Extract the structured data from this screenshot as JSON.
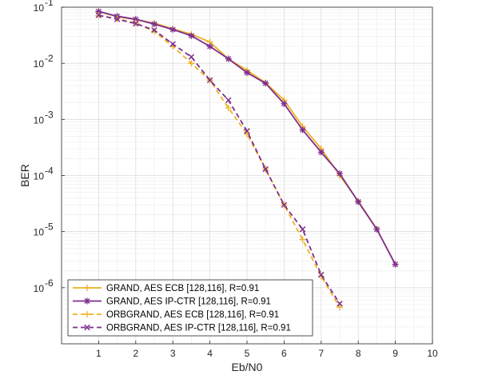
{
  "chart_data": {
    "type": "line",
    "title": "",
    "xlabel": "Eb/N0",
    "ylabel": "BER",
    "xlim": [
      0,
      10
    ],
    "ylim": [
      1e-07,
      0.1
    ],
    "yscale": "log",
    "grid": true,
    "minor_grid": true,
    "legend_position": "bottom-left",
    "x_ticks": [
      "1",
      "2",
      "3",
      "4",
      "5",
      "6",
      "7",
      "8",
      "9",
      "10"
    ],
    "y_ticks": [
      {
        "exp": "-1",
        "value": 0.1
      },
      {
        "exp": "-2",
        "value": 0.01
      },
      {
        "exp": "-3",
        "value": 0.001
      },
      {
        "exp": "-4",
        "value": 0.0001
      },
      {
        "exp": "-5",
        "value": 1e-05
      },
      {
        "exp": "-6",
        "value": 1e-06
      }
    ],
    "series": [
      {
        "name": "GRAND, AES ECB [128,116], R=0.91",
        "color": "#EDB120",
        "style": "solid",
        "marker": "plus",
        "x": [
          1,
          1.5,
          2,
          2.5,
          3,
          3.5,
          4,
          4.5,
          5,
          5.5,
          6,
          6.5,
          7,
          7.5,
          8,
          8.5,
          9
        ],
        "y": [
          0.083,
          0.068,
          0.06,
          0.052,
          0.041,
          0.033,
          0.024,
          0.012,
          0.0075,
          0.0045,
          0.0022,
          0.00075,
          0.0003,
          0.0001,
          3.5e-05,
          1.11e-05,
          2.6e-06
        ]
      },
      {
        "name": "GRAND, AES IP-CTR [128,116], R=0.91",
        "color": "#7E2F8E",
        "style": "solid",
        "marker": "star",
        "x": [
          1,
          1.5,
          2,
          2.5,
          3,
          3.5,
          4,
          4.5,
          5,
          5.5,
          6,
          6.5,
          7,
          7.5,
          8,
          8.5,
          9
        ],
        "y": [
          0.084,
          0.069,
          0.061,
          0.05,
          0.04,
          0.031,
          0.02,
          0.012,
          0.0068,
          0.0044,
          0.0019,
          0.00065,
          0.00026,
          0.000108,
          3.4e-05,
          1.1e-05,
          2.6e-06
        ]
      },
      {
        "name": "ORBGRAND, AES ECB [128,116], R=0.91",
        "color": "#EDB120",
        "style": "dashed",
        "marker": "plus",
        "x": [
          1,
          1.5,
          2,
          2.5,
          3,
          3.5,
          4,
          4.5,
          5,
          5.5,
          6,
          6.5,
          7,
          7.5
        ],
        "y": [
          0.071,
          0.062,
          0.052,
          0.037,
          0.02,
          0.01,
          0.005,
          0.0016,
          0.00055,
          0.00013,
          3e-05,
          7.2e-06,
          1.6e-06,
          4.5e-07
        ]
      },
      {
        "name": "ORBGRAND, AES IP-CTR [128,116], R=0.91",
        "color": "#7E2F8E",
        "style": "dashed",
        "marker": "x",
        "x": [
          1,
          1.5,
          2,
          2.5,
          3,
          3.5,
          4,
          4.5,
          5,
          5.5,
          6,
          6.5,
          7,
          7.5
        ],
        "y": [
          0.072,
          0.061,
          0.051,
          0.039,
          0.022,
          0.013,
          0.005,
          0.0022,
          0.00062,
          0.00013,
          3e-05,
          1.1e-05,
          1.7e-06,
          5.2e-07
        ]
      }
    ]
  }
}
